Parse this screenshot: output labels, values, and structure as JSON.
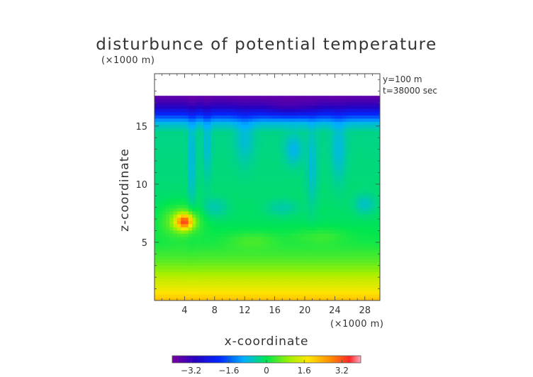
{
  "chart_data": {
    "type": "heatmap",
    "title": "disturbunce of potential temperature",
    "y_unit": "(×1000 m)",
    "x_unit": "(×1000 m)",
    "xlabel": "x-coordinate",
    "ylabel": "z-coordinate",
    "annotation_lines": [
      "y=100 m",
      "t=38000 sec"
    ],
    "xlim": [
      0,
      30
    ],
    "ylim": [
      0,
      19.5
    ],
    "x_ticks": [
      4,
      8,
      12,
      16,
      20,
      24,
      28
    ],
    "y_ticks": [
      5,
      10,
      15
    ],
    "colorbar": {
      "range": [
        -4.0,
        4.0
      ],
      "ticks": [
        -3.2,
        -1.6,
        0,
        1.6,
        3.2
      ]
    },
    "field_top": 17.6,
    "z_profile": [
      {
        "z": 0.0,
        "value": 2.2
      },
      {
        "z": 1.0,
        "value": 1.6
      },
      {
        "z": 2.0,
        "value": 1.2
      },
      {
        "z": 2.5,
        "value": 0.9
      },
      {
        "z": 3.5,
        "value": 0.5
      },
      {
        "z": 5.0,
        "value": 0.1
      },
      {
        "z": 7.0,
        "value": -0.1
      },
      {
        "z": 10.0,
        "value": -0.2
      },
      {
        "z": 14.5,
        "value": -0.3
      },
      {
        "z": 15.3,
        "value": -0.8
      },
      {
        "z": 16.0,
        "value": -2.0
      },
      {
        "z": 16.8,
        "value": -3.1
      },
      {
        "z": 17.6,
        "value": -3.8
      }
    ],
    "anomalies": [
      {
        "x": 4.0,
        "z": 6.8,
        "value": 2.6,
        "sx": 0.8,
        "sz": 0.45
      },
      {
        "x": 3.5,
        "z": 6.9,
        "value": 0.9,
        "sx": 1.8,
        "sz": 0.9
      },
      {
        "x": 5.0,
        "z": 12.0,
        "value": -0.6,
        "sx": 0.35,
        "sz": 3.2
      },
      {
        "x": 7.0,
        "z": 13.5,
        "value": -0.5,
        "sx": 0.4,
        "sz": 2.2
      },
      {
        "x": 12.0,
        "z": 14.0,
        "value": -0.45,
        "sx": 0.9,
        "sz": 1.6
      },
      {
        "x": 18.5,
        "z": 13.0,
        "value": -0.6,
        "sx": 0.8,
        "sz": 0.9
      },
      {
        "x": 21.0,
        "z": 11.5,
        "value": -0.5,
        "sx": 0.5,
        "sz": 2.5
      },
      {
        "x": 24.5,
        "z": 13.0,
        "value": -0.5,
        "sx": 0.7,
        "sz": 2.0
      },
      {
        "x": 8.0,
        "z": 8.0,
        "value": -0.4,
        "sx": 1.2,
        "sz": 0.6
      },
      {
        "x": 17.0,
        "z": 8.0,
        "value": -0.35,
        "sx": 1.5,
        "sz": 0.5
      },
      {
        "x": 28.0,
        "z": 8.3,
        "value": -0.5,
        "sx": 1.0,
        "sz": 0.6
      },
      {
        "x": 13.0,
        "z": 5.2,
        "value": 0.35,
        "sx": 2.5,
        "sz": 0.5
      },
      {
        "x": 22.0,
        "z": 5.5,
        "value": 0.3,
        "sx": 2.5,
        "sz": 0.5
      },
      {
        "x": 18.0,
        "z": 16.5,
        "value": -0.4,
        "sx": 2.5,
        "sz": 0.5
      }
    ]
  }
}
